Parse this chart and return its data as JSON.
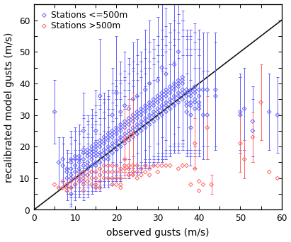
{
  "xlabel": "observed gusts (m/s)",
  "ylabel": "recalibrated model gusts (m/s)",
  "xlim": [
    0,
    60
  ],
  "ylim": [
    0,
    65
  ],
  "xticks": [
    0,
    10,
    20,
    30,
    40,
    50,
    60
  ],
  "yticks": [
    0,
    10,
    20,
    30,
    40,
    50,
    60
  ],
  "legend_labels": [
    "Stations <=500m",
    "Stations >500m"
  ],
  "blue_color": "#6464ff",
  "red_color": "#ff6464",
  "diag_color": "#111111",
  "background_color": "#ffffff",
  "font_size_label": 8.5,
  "font_size_legend": 7.5,
  "font_size_tick": 7.5,
  "blue_x": [
    5,
    6,
    7,
    7,
    8,
    8,
    8,
    8,
    9,
    9,
    9,
    9,
    9,
    9,
    9,
    10,
    10,
    10,
    10,
    10,
    10,
    11,
    11,
    11,
    11,
    11,
    11,
    11,
    12,
    12,
    12,
    12,
    12,
    12,
    12,
    12,
    13,
    13,
    13,
    13,
    13,
    13,
    13,
    14,
    14,
    14,
    14,
    14,
    14,
    14,
    15,
    15,
    15,
    15,
    15,
    15,
    15,
    15,
    16,
    16,
    16,
    16,
    16,
    16,
    16,
    17,
    17,
    17,
    17,
    17,
    17,
    18,
    18,
    18,
    18,
    18,
    18,
    18,
    19,
    19,
    19,
    19,
    19,
    19,
    19,
    20,
    20,
    20,
    20,
    20,
    20,
    20,
    21,
    21,
    21,
    21,
    21,
    21,
    21,
    22,
    22,
    22,
    22,
    22,
    22,
    22,
    23,
    23,
    23,
    23,
    23,
    23,
    23,
    24,
    24,
    24,
    24,
    24,
    24,
    24,
    25,
    25,
    25,
    25,
    25,
    25,
    25,
    26,
    26,
    26,
    26,
    26,
    26,
    27,
    27,
    27,
    27,
    27,
    27,
    27,
    28,
    28,
    28,
    28,
    28,
    28,
    28,
    29,
    29,
    29,
    29,
    29,
    29,
    30,
    30,
    30,
    30,
    30,
    30,
    30,
    31,
    31,
    31,
    31,
    31,
    31,
    31,
    32,
    32,
    32,
    32,
    32,
    32,
    32,
    33,
    33,
    33,
    33,
    33,
    33,
    34,
    34,
    34,
    34,
    34,
    34,
    34,
    35,
    35,
    35,
    35,
    35,
    35,
    35,
    36,
    36,
    36,
    36,
    36,
    36,
    37,
    37,
    37,
    37,
    37,
    37,
    38,
    38,
    38,
    38,
    38,
    38,
    38,
    39,
    39,
    39,
    39,
    39,
    39,
    40,
    40,
    40,
    40,
    40,
    41,
    41,
    42,
    42,
    44,
    44,
    50,
    50,
    51,
    53,
    53,
    57,
    59
  ],
  "blue_y": [
    31,
    15,
    16,
    14,
    13,
    10,
    12,
    8,
    13,
    11,
    10,
    15,
    16,
    7,
    5,
    16,
    14,
    12,
    10,
    8,
    17,
    17,
    15,
    13,
    12,
    10,
    9,
    16,
    18,
    16,
    14,
    12,
    11,
    9,
    19,
    25,
    19,
    17,
    15,
    13,
    11,
    18,
    14,
    20,
    18,
    16,
    14,
    12,
    19,
    17,
    21,
    19,
    17,
    15,
    14,
    20,
    18,
    25,
    22,
    20,
    18,
    17,
    15,
    21,
    36,
    23,
    21,
    19,
    18,
    16,
    22,
    24,
    22,
    20,
    19,
    17,
    23,
    16,
    25,
    23,
    21,
    20,
    18,
    24,
    30,
    26,
    24,
    22,
    21,
    19,
    25,
    37,
    27,
    25,
    23,
    22,
    20,
    26,
    31,
    28,
    26,
    24,
    23,
    21,
    27,
    33,
    29,
    27,
    25,
    24,
    22,
    28,
    32,
    30,
    28,
    26,
    25,
    23,
    29,
    35,
    31,
    29,
    27,
    26,
    24,
    30,
    36,
    32,
    30,
    28,
    27,
    25,
    31,
    33,
    31,
    29,
    28,
    26,
    32,
    38,
    34,
    32,
    30,
    29,
    27,
    33,
    40,
    35,
    33,
    31,
    30,
    28,
    34,
    36,
    34,
    32,
    31,
    29,
    35,
    41,
    37,
    35,
    33,
    32,
    30,
    36,
    45,
    38,
    36,
    34,
    33,
    31,
    37,
    43,
    39,
    37,
    35,
    34,
    32,
    38,
    40,
    38,
    36,
    35,
    33,
    39,
    46,
    41,
    39,
    37,
    36,
    34,
    40,
    50,
    42,
    40,
    38,
    37,
    35,
    41,
    38,
    36,
    34,
    33,
    31,
    37,
    38,
    36,
    34,
    33,
    30,
    37,
    26,
    39,
    37,
    35,
    34,
    32,
    38,
    38,
    36,
    34,
    33,
    32,
    30,
    38,
    30,
    38,
    38,
    36,
    31,
    30,
    32,
    28,
    25,
    31,
    30
  ],
  "blue_yerr": [
    10,
    8,
    7,
    7,
    6,
    5,
    6,
    5,
    8,
    7,
    6,
    8,
    9,
    5,
    4,
    9,
    8,
    7,
    6,
    5,
    9,
    10,
    9,
    8,
    7,
    6,
    5,
    9,
    11,
    10,
    9,
    8,
    7,
    6,
    11,
    12,
    11,
    10,
    9,
    8,
    7,
    10,
    9,
    12,
    11,
    10,
    9,
    7,
    11,
    10,
    12,
    11,
    10,
    9,
    8,
    11,
    10,
    13,
    13,
    12,
    11,
    10,
    9,
    12,
    18,
    14,
    13,
    12,
    11,
    9,
    13,
    14,
    13,
    12,
    11,
    9,
    13,
    9,
    15,
    14,
    13,
    12,
    10,
    14,
    15,
    15,
    14,
    13,
    12,
    10,
    14,
    18,
    16,
    15,
    14,
    13,
    10,
    15,
    16,
    16,
    15,
    14,
    13,
    11,
    15,
    17,
    17,
    16,
    15,
    14,
    11,
    15,
    16,
    17,
    16,
    15,
    14,
    12,
    16,
    18,
    18,
    17,
    16,
    15,
    12,
    16,
    18,
    18,
    17,
    16,
    15,
    12,
    16,
    18,
    17,
    16,
    15,
    13,
    16,
    19,
    19,
    18,
    17,
    16,
    13,
    17,
    20,
    19,
    18,
    17,
    16,
    13,
    17,
    19,
    18,
    17,
    16,
    13,
    17,
    20,
    20,
    19,
    18,
    17,
    14,
    18,
    22,
    20,
    19,
    18,
    17,
    14,
    18,
    21,
    20,
    19,
    18,
    17,
    14,
    18,
    20,
    19,
    18,
    17,
    14,
    18,
    22,
    21,
    20,
    19,
    18,
    14,
    19,
    24,
    21,
    20,
    19,
    18,
    14,
    19,
    19,
    18,
    17,
    16,
    12,
    18,
    19,
    18,
    17,
    16,
    11,
    18,
    12,
    20,
    19,
    18,
    17,
    13,
    18,
    19,
    18,
    17,
    16,
    13,
    14,
    18,
    14,
    18,
    18,
    17,
    12,
    12,
    13,
    11,
    10,
    12,
    12
  ],
  "red_x": [
    5,
    6,
    7,
    7,
    8,
    8,
    8,
    9,
    9,
    10,
    10,
    11,
    11,
    12,
    12,
    12,
    12,
    13,
    13,
    14,
    14,
    14,
    15,
    15,
    15,
    15,
    16,
    16,
    16,
    16,
    17,
    17,
    17,
    18,
    18,
    18,
    19,
    19,
    19,
    19,
    20,
    20,
    20,
    20,
    21,
    21,
    21,
    21,
    21,
    22,
    22,
    22,
    22,
    23,
    23,
    23,
    23,
    24,
    24,
    24,
    24,
    25,
    25,
    25,
    26,
    26,
    27,
    27,
    28,
    28,
    29,
    30,
    30,
    31,
    32,
    33,
    35,
    36,
    37,
    38,
    39,
    39,
    40,
    40,
    41,
    42,
    43,
    50,
    51,
    53,
    55,
    57,
    59
  ],
  "red_y": [
    8,
    7,
    9,
    7,
    8,
    7,
    6,
    9,
    7,
    10,
    8,
    11,
    9,
    12,
    10,
    8,
    6,
    11,
    9,
    12,
    10,
    8,
    12,
    10,
    8,
    7,
    13,
    11,
    9,
    7,
    14,
    12,
    10,
    14,
    12,
    10,
    14,
    12,
    10,
    8,
    14,
    12,
    10,
    8,
    13,
    12,
    10,
    8,
    7,
    22,
    16,
    14,
    13,
    23,
    14,
    13,
    11,
    24,
    14,
    12,
    11,
    14,
    12,
    10,
    13,
    11,
    14,
    12,
    13,
    11,
    14,
    14,
    12,
    14,
    14,
    14,
    13,
    14,
    14,
    8,
    21,
    13,
    9,
    6,
    8,
    26,
    8,
    21,
    16,
    23,
    34,
    12,
    10
  ],
  "red_yerr_x": [
    22,
    22,
    23,
    24,
    39,
    42,
    43,
    50,
    51,
    53,
    55
  ],
  "red_yerr_y": [
    22,
    16,
    23,
    24,
    21,
    26,
    8,
    21,
    16,
    23,
    34
  ],
  "red_yerr_e": [
    10,
    6,
    12,
    13,
    8,
    10,
    3,
    9,
    6,
    8,
    12
  ]
}
